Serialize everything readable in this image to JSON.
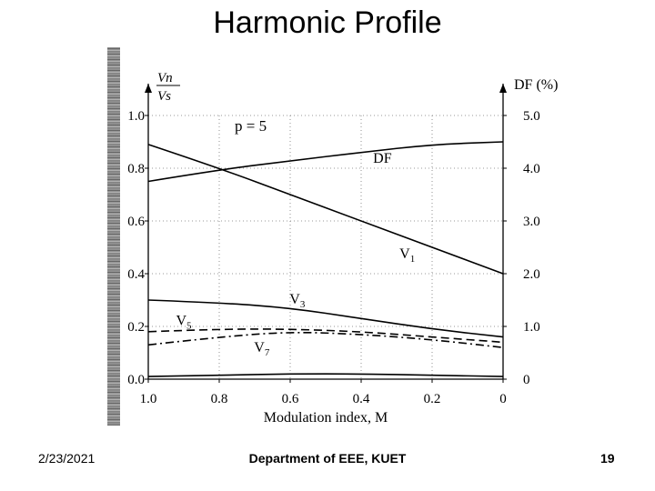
{
  "slide": {
    "title": "Harmonic Profile",
    "footer_date": "2/23/2021",
    "footer_dept": "Department of EEE, KUET",
    "page_number": "19"
  },
  "chart_data": {
    "type": "line",
    "xlabel": "Modulation index, M",
    "x_ticks": [
      "1.0",
      "0.8",
      "0.6",
      "0.4",
      "0.2",
      "0"
    ],
    "xlim": [
      1.0,
      0.0
    ],
    "ylabel_left_num": "Vn",
    "ylabel_left_den": "Vs",
    "ylim_left": [
      0.0,
      1.0
    ],
    "left_ticks": [
      "1.0",
      "0.8",
      "0.6",
      "0.4",
      "0.2",
      "0.0"
    ],
    "ylabel_right": "DF (%)",
    "ylim_right": [
      0,
      5.0
    ],
    "right_ticks": [
      "5.0",
      "4.0",
      "3.0",
      "2.0",
      "1.0",
      "0"
    ],
    "annotation": "p = 5",
    "grid": "dotted",
    "series": [
      {
        "name": "V1",
        "label_main": "V",
        "label_sub": "1",
        "axis": "left",
        "style": "solid",
        "x": [
          1.0,
          0.8,
          0.6,
          0.4,
          0.2,
          0.0
        ],
        "y": [
          0.89,
          0.8,
          0.7,
          0.6,
          0.5,
          0.4
        ]
      },
      {
        "name": "DF",
        "label_main": "DF",
        "label_sub": "",
        "axis": "right",
        "style": "solid",
        "x": [
          1.0,
          0.8,
          0.6,
          0.4,
          0.2,
          0.0
        ],
        "y": [
          3.75,
          3.97,
          4.14,
          4.3,
          4.45,
          4.5
        ]
      },
      {
        "name": "V3",
        "label_main": "V",
        "label_sub": "3",
        "axis": "left",
        "style": "solid",
        "x": [
          1.0,
          0.8,
          0.6,
          0.4,
          0.2,
          0.0
        ],
        "y": [
          0.3,
          0.29,
          0.27,
          0.23,
          0.19,
          0.16
        ]
      },
      {
        "name": "V5",
        "label_main": "V",
        "label_sub": "5",
        "axis": "left",
        "style": "dashed",
        "x": [
          1.0,
          0.8,
          0.6,
          0.4,
          0.2,
          0.0
        ],
        "y": [
          0.18,
          0.19,
          0.19,
          0.18,
          0.16,
          0.14
        ]
      },
      {
        "name": "V7",
        "label_main": "V",
        "label_sub": "7",
        "axis": "left",
        "style": "dashdot",
        "x": [
          1.0,
          0.8,
          0.6,
          0.4,
          0.2,
          0.0
        ],
        "y": [
          0.13,
          0.16,
          0.18,
          0.17,
          0.15,
          0.12
        ]
      },
      {
        "name": "baseline",
        "label_main": "",
        "label_sub": "",
        "axis": "left",
        "style": "solid",
        "x": [
          1.0,
          0.8,
          0.6,
          0.4,
          0.2,
          0.0
        ],
        "y": [
          0.01,
          0.015,
          0.02,
          0.02,
          0.015,
          0.01
        ]
      }
    ]
  }
}
